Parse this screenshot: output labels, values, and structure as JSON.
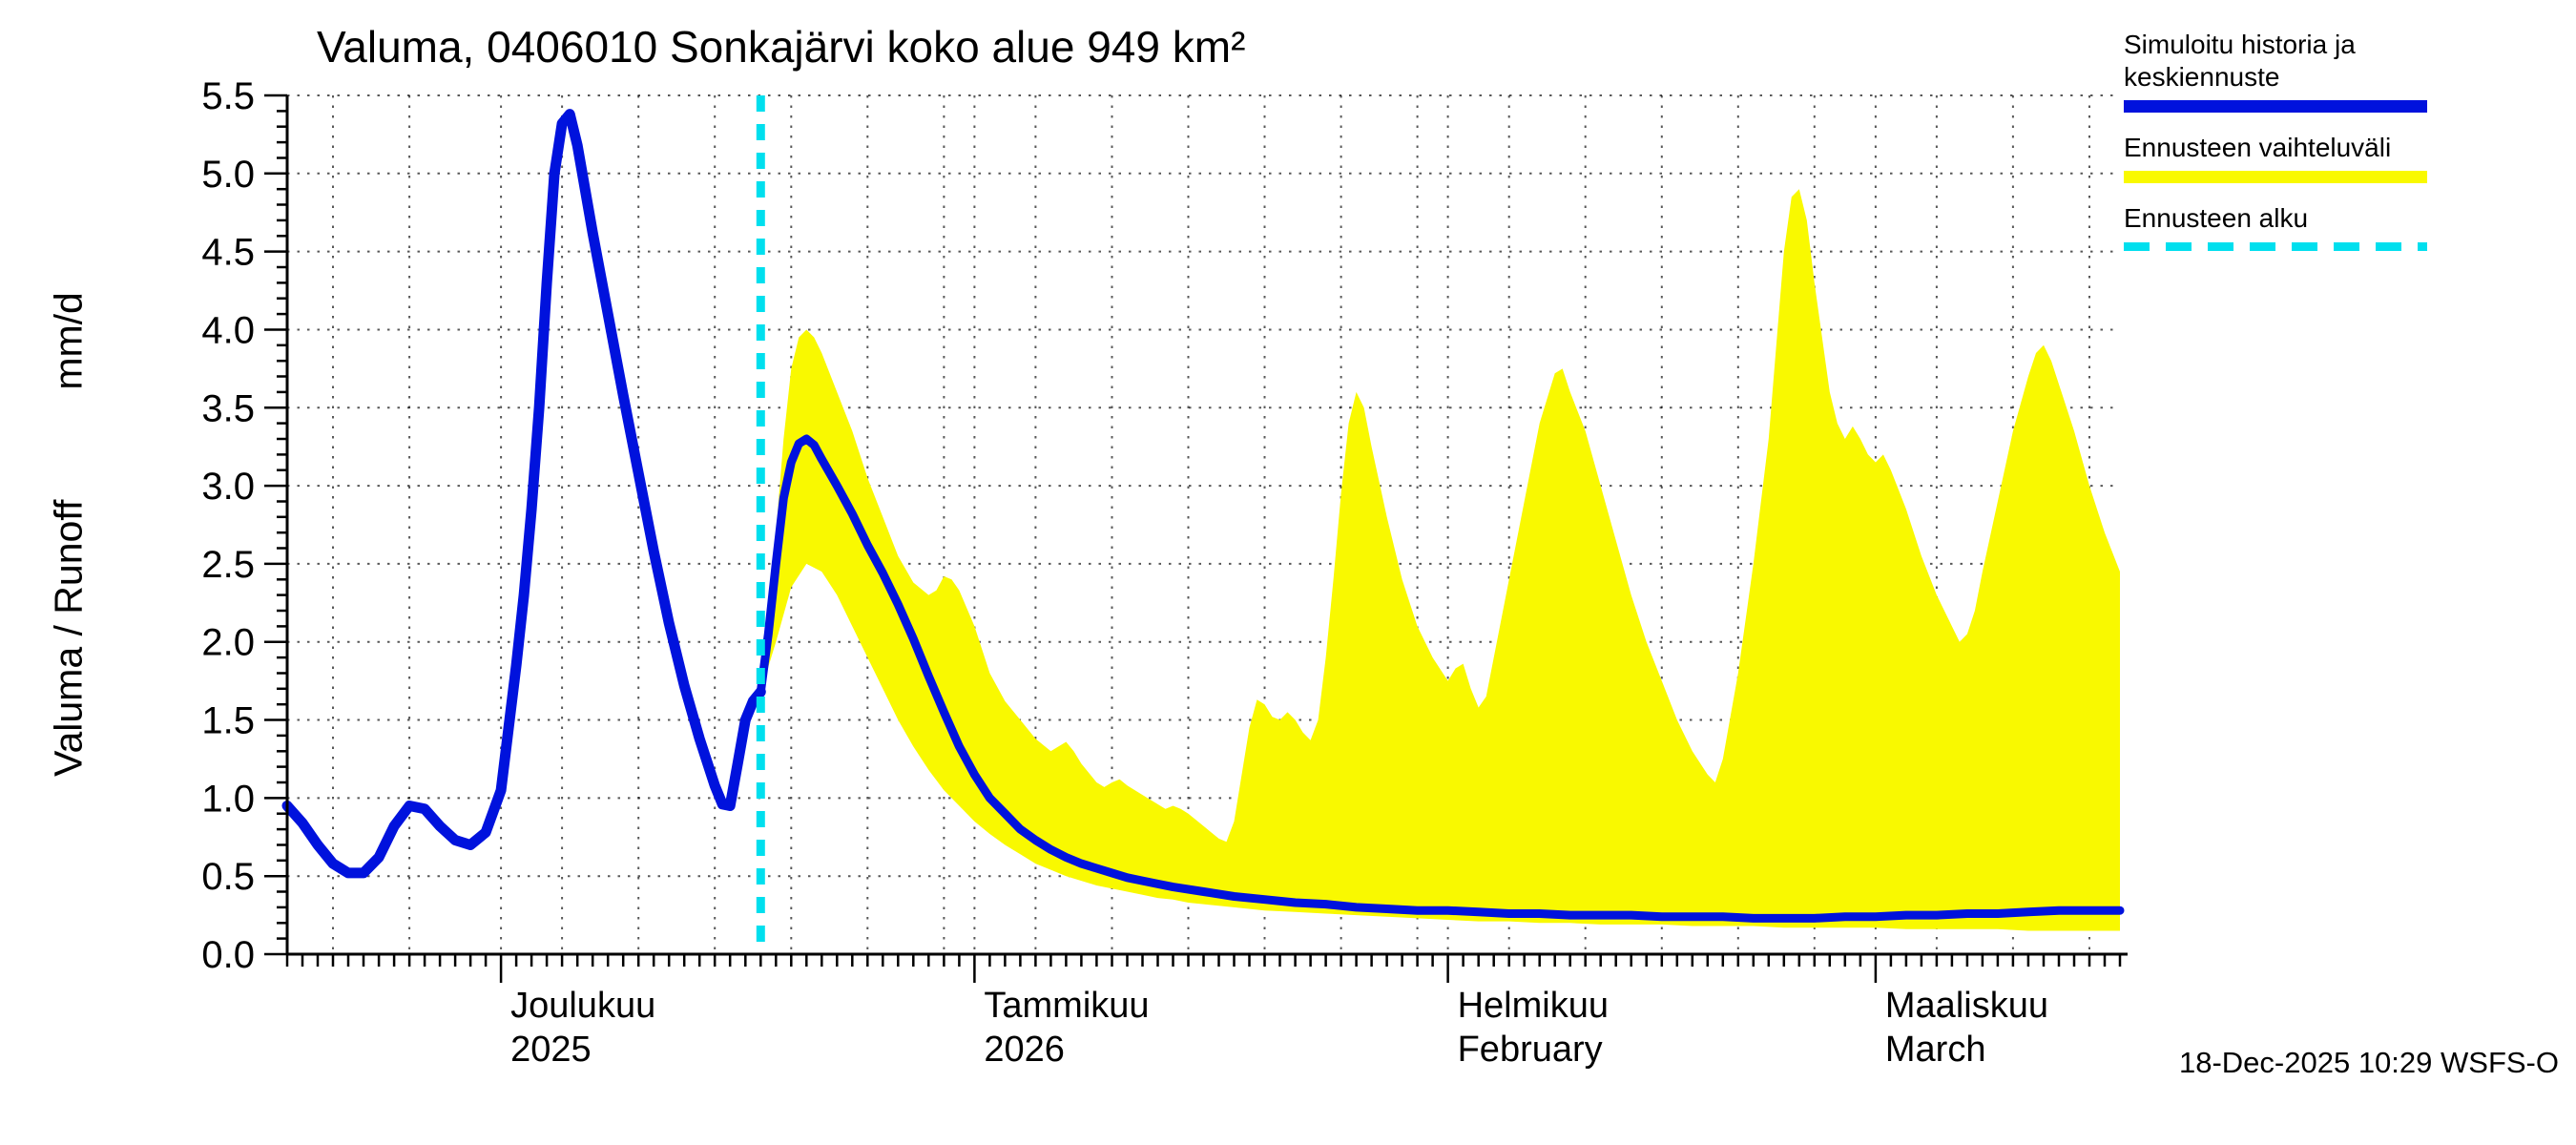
{
  "title": "Valuma, 0406010 Sonkajärvi koko alue 949 km²",
  "timestamp": "18-Dec-2025 10:29 WSFS-O",
  "legend": {
    "items": [
      {
        "label": "Simuloitu historia ja keskiennuste",
        "type": "line",
        "color": "#0012dd"
      },
      {
        "label": "Ennusteen vaihteluväli",
        "type": "band",
        "color": "#f9f900"
      },
      {
        "label": "Ennusteen alku",
        "type": "dashed",
        "color": "#00dfee"
      }
    ]
  },
  "chart_data": {
    "type": "line",
    "title": "Valuma, 0406010 Sonkajärvi koko alue 949 km²",
    "ylabel": "Valuma / Runoff",
    "ylabel_unit": "mm/d",
    "ylim": [
      0,
      5.5
    ],
    "ytick_step": 0.5,
    "x_unit": "days since 17-Nov-2025",
    "xlim": [
      0,
      120
    ],
    "grid": true,
    "legend_position": "top-right",
    "forecast_start_day": 31,
    "forecast_start_date": "18-Dec-2025",
    "forecast_color": "#00dfee",
    "month_ticks": [
      {
        "day": 14,
        "label": "Joulukuu",
        "sub": "2025"
      },
      {
        "day": 45,
        "label": "Tammikuu",
        "sub": "2026"
      },
      {
        "day": 76,
        "label": "Helmikuu",
        "sub": "February"
      },
      {
        "day": 104,
        "label": "Maaliskuu",
        "sub": "March"
      }
    ],
    "grid_days": [
      3,
      8,
      14,
      18,
      23,
      28,
      33,
      38,
      43,
      45,
      49,
      54,
      59,
      64,
      69,
      74,
      76,
      80,
      85,
      90,
      95,
      100,
      104,
      108,
      113,
      118
    ],
    "series": [
      {
        "name": "Simuloitu historia",
        "color": "#0012dd",
        "width": 11,
        "points": [
          [
            0,
            0.95
          ],
          [
            1,
            0.84
          ],
          [
            2,
            0.7
          ],
          [
            3,
            0.58
          ],
          [
            4,
            0.52
          ],
          [
            5,
            0.52
          ],
          [
            6,
            0.62
          ],
          [
            7,
            0.82
          ],
          [
            8,
            0.95
          ],
          [
            9,
            0.93
          ],
          [
            10,
            0.82
          ],
          [
            11,
            0.73
          ],
          [
            12,
            0.7
          ],
          [
            13,
            0.78
          ],
          [
            14,
            1.05
          ],
          [
            14.5,
            1.45
          ],
          [
            15,
            1.85
          ],
          [
            15.5,
            2.3
          ],
          [
            16,
            2.85
          ],
          [
            16.5,
            3.5
          ],
          [
            17,
            4.3
          ],
          [
            17.5,
            5.0
          ],
          [
            18,
            5.32
          ],
          [
            18.5,
            5.38
          ],
          [
            19,
            5.18
          ],
          [
            20,
            4.62
          ],
          [
            21,
            4.1
          ],
          [
            22,
            3.58
          ],
          [
            23,
            3.08
          ],
          [
            24,
            2.58
          ],
          [
            25,
            2.12
          ],
          [
            26,
            1.72
          ],
          [
            27,
            1.38
          ],
          [
            28,
            1.08
          ],
          [
            28.5,
            0.96
          ],
          [
            29,
            0.95
          ],
          [
            29.5,
            1.22
          ],
          [
            30,
            1.5
          ],
          [
            30.5,
            1.62
          ],
          [
            31,
            1.68
          ]
        ]
      },
      {
        "name": "Keskiennuste",
        "color": "#0012dd",
        "width": 9,
        "points": [
          [
            31,
            1.68
          ],
          [
            31.5,
            2.05
          ],
          [
            32,
            2.5
          ],
          [
            32.5,
            2.92
          ],
          [
            33,
            3.15
          ],
          [
            33.5,
            3.27
          ],
          [
            34,
            3.3
          ],
          [
            34.5,
            3.26
          ],
          [
            35,
            3.17
          ],
          [
            36,
            3.0
          ],
          [
            37,
            2.82
          ],
          [
            38,
            2.62
          ],
          [
            39,
            2.44
          ],
          [
            40,
            2.24
          ],
          [
            41,
            2.02
          ],
          [
            42,
            1.78
          ],
          [
            43,
            1.55
          ],
          [
            44,
            1.33
          ],
          [
            45,
            1.15
          ],
          [
            46,
            1.0
          ],
          [
            47,
            0.9
          ],
          [
            48,
            0.8
          ],
          [
            49,
            0.73
          ],
          [
            50,
            0.67
          ],
          [
            51,
            0.62
          ],
          [
            52,
            0.58
          ],
          [
            53,
            0.55
          ],
          [
            54,
            0.52
          ],
          [
            55,
            0.49
          ],
          [
            56,
            0.47
          ],
          [
            57,
            0.45
          ],
          [
            58,
            0.43
          ],
          [
            60,
            0.4
          ],
          [
            62,
            0.37
          ],
          [
            64,
            0.35
          ],
          [
            66,
            0.33
          ],
          [
            68,
            0.32
          ],
          [
            70,
            0.3
          ],
          [
            72,
            0.29
          ],
          [
            74,
            0.28
          ],
          [
            76,
            0.28
          ],
          [
            78,
            0.27
          ],
          [
            80,
            0.26
          ],
          [
            82,
            0.26
          ],
          [
            84,
            0.25
          ],
          [
            86,
            0.25
          ],
          [
            88,
            0.25
          ],
          [
            90,
            0.24
          ],
          [
            92,
            0.24
          ],
          [
            94,
            0.24
          ],
          [
            96,
            0.23
          ],
          [
            98,
            0.23
          ],
          [
            100,
            0.23
          ],
          [
            102,
            0.24
          ],
          [
            104,
            0.24
          ],
          [
            106,
            0.25
          ],
          [
            108,
            0.25
          ],
          [
            110,
            0.26
          ],
          [
            112,
            0.26
          ],
          [
            114,
            0.27
          ],
          [
            116,
            0.28
          ],
          [
            118,
            0.28
          ],
          [
            120,
            0.28
          ]
        ]
      }
    ],
    "band": {
      "name": "Ennusteen vaihteluväli",
      "color": "#f9f900",
      "upper": [
        [
          31,
          1.68
        ],
        [
          31.5,
          2.1
        ],
        [
          32,
          2.7
        ],
        [
          32.5,
          3.3
        ],
        [
          33,
          3.75
        ],
        [
          33.5,
          3.95
        ],
        [
          34,
          4.0
        ],
        [
          34.5,
          3.95
        ],
        [
          35,
          3.85
        ],
        [
          36,
          3.6
        ],
        [
          37,
          3.35
        ],
        [
          38,
          3.05
        ],
        [
          39,
          2.8
        ],
        [
          40,
          2.55
        ],
        [
          41,
          2.38
        ],
        [
          42,
          2.3
        ],
        [
          42.5,
          2.33
        ],
        [
          43,
          2.42
        ],
        [
          43.5,
          2.4
        ],
        [
          44,
          2.33
        ],
        [
          45,
          2.1
        ],
        [
          45.5,
          1.95
        ],
        [
          46,
          1.8
        ],
        [
          47,
          1.62
        ],
        [
          48,
          1.5
        ],
        [
          49,
          1.38
        ],
        [
          50,
          1.3
        ],
        [
          50.5,
          1.33
        ],
        [
          51,
          1.36
        ],
        [
          51.5,
          1.3
        ],
        [
          52,
          1.22
        ],
        [
          53,
          1.1
        ],
        [
          53.5,
          1.07
        ],
        [
          54,
          1.1
        ],
        [
          54.5,
          1.12
        ],
        [
          55,
          1.08
        ],
        [
          56,
          1.02
        ],
        [
          57,
          0.96
        ],
        [
          57.5,
          0.93
        ],
        [
          58,
          0.95
        ],
        [
          58.5,
          0.93
        ],
        [
          59,
          0.9
        ],
        [
          60,
          0.82
        ],
        [
          61,
          0.74
        ],
        [
          61.5,
          0.72
        ],
        [
          62,
          0.85
        ],
        [
          62.5,
          1.15
        ],
        [
          63,
          1.45
        ],
        [
          63.5,
          1.63
        ],
        [
          64,
          1.6
        ],
        [
          64.5,
          1.52
        ],
        [
          65,
          1.5
        ],
        [
          65.5,
          1.55
        ],
        [
          66,
          1.5
        ],
        [
          66.5,
          1.42
        ],
        [
          67,
          1.37
        ],
        [
          67.5,
          1.5
        ],
        [
          68,
          1.9
        ],
        [
          68.5,
          2.4
        ],
        [
          69,
          2.95
        ],
        [
          69.5,
          3.4
        ],
        [
          70,
          3.6
        ],
        [
          70.5,
          3.5
        ],
        [
          71,
          3.25
        ],
        [
          72,
          2.8
        ],
        [
          73,
          2.4
        ],
        [
          74,
          2.1
        ],
        [
          75,
          1.9
        ],
        [
          76,
          1.75
        ],
        [
          76.5,
          1.83
        ],
        [
          77,
          1.86
        ],
        [
          77.5,
          1.7
        ],
        [
          78,
          1.58
        ],
        [
          78.5,
          1.65
        ],
        [
          79,
          1.9
        ],
        [
          80,
          2.4
        ],
        [
          81,
          2.9
        ],
        [
          82,
          3.4
        ],
        [
          83,
          3.72
        ],
        [
          83.5,
          3.75
        ],
        [
          84,
          3.6
        ],
        [
          85,
          3.35
        ],
        [
          86,
          3.0
        ],
        [
          87,
          2.65
        ],
        [
          88,
          2.3
        ],
        [
          89,
          2.0
        ],
        [
          90,
          1.75
        ],
        [
          91,
          1.5
        ],
        [
          92,
          1.3
        ],
        [
          93,
          1.15
        ],
        [
          93.5,
          1.1
        ],
        [
          94,
          1.25
        ],
        [
          95,
          1.8
        ],
        [
          96,
          2.5
        ],
        [
          97,
          3.3
        ],
        [
          97.5,
          3.9
        ],
        [
          98,
          4.5
        ],
        [
          98.5,
          4.85
        ],
        [
          99,
          4.9
        ],
        [
          99.5,
          4.7
        ],
        [
          100,
          4.3
        ],
        [
          100.5,
          3.95
        ],
        [
          101,
          3.6
        ],
        [
          101.5,
          3.4
        ],
        [
          102,
          3.3
        ],
        [
          102.5,
          3.38
        ],
        [
          103,
          3.3
        ],
        [
          103.5,
          3.2
        ],
        [
          104,
          3.15
        ],
        [
          104.5,
          3.2
        ],
        [
          105,
          3.1
        ],
        [
          106,
          2.85
        ],
        [
          107,
          2.55
        ],
        [
          108,
          2.3
        ],
        [
          109,
          2.1
        ],
        [
          109.5,
          2.0
        ],
        [
          110,
          2.05
        ],
        [
          110.5,
          2.2
        ],
        [
          111,
          2.45
        ],
        [
          112,
          2.9
        ],
        [
          113,
          3.35
        ],
        [
          114,
          3.7
        ],
        [
          114.5,
          3.85
        ],
        [
          115,
          3.9
        ],
        [
          115.5,
          3.8
        ],
        [
          116,
          3.65
        ],
        [
          117,
          3.35
        ],
        [
          118,
          3.0
        ],
        [
          119,
          2.7
        ],
        [
          120,
          2.45
        ]
      ],
      "lower": [
        [
          31,
          1.68
        ],
        [
          32,
          2.0
        ],
        [
          33,
          2.35
        ],
        [
          34,
          2.5
        ],
        [
          35,
          2.45
        ],
        [
          36,
          2.3
        ],
        [
          37,
          2.1
        ],
        [
          38,
          1.9
        ],
        [
          39,
          1.7
        ],
        [
          40,
          1.5
        ],
        [
          41,
          1.33
        ],
        [
          42,
          1.18
        ],
        [
          43,
          1.05
        ],
        [
          44,
          0.95
        ],
        [
          45,
          0.85
        ],
        [
          46,
          0.77
        ],
        [
          47,
          0.7
        ],
        [
          48,
          0.64
        ],
        [
          49,
          0.58
        ],
        [
          50,
          0.54
        ],
        [
          51,
          0.5
        ],
        [
          52,
          0.47
        ],
        [
          53,
          0.44
        ],
        [
          54,
          0.42
        ],
        [
          55,
          0.4
        ],
        [
          56,
          0.38
        ],
        [
          57,
          0.36
        ],
        [
          58,
          0.35
        ],
        [
          59,
          0.33
        ],
        [
          60,
          0.32
        ],
        [
          62,
          0.3
        ],
        [
          64,
          0.28
        ],
        [
          66,
          0.27
        ],
        [
          68,
          0.26
        ],
        [
          70,
          0.25
        ],
        [
          72,
          0.24
        ],
        [
          74,
          0.23
        ],
        [
          76,
          0.22
        ],
        [
          78,
          0.21
        ],
        [
          80,
          0.21
        ],
        [
          82,
          0.2
        ],
        [
          84,
          0.2
        ],
        [
          86,
          0.19
        ],
        [
          88,
          0.19
        ],
        [
          90,
          0.19
        ],
        [
          92,
          0.18
        ],
        [
          94,
          0.18
        ],
        [
          96,
          0.18
        ],
        [
          98,
          0.17
        ],
        [
          100,
          0.17
        ],
        [
          102,
          0.17
        ],
        [
          104,
          0.17
        ],
        [
          106,
          0.16
        ],
        [
          108,
          0.16
        ],
        [
          110,
          0.16
        ],
        [
          112,
          0.16
        ],
        [
          114,
          0.15
        ],
        [
          116,
          0.15
        ],
        [
          118,
          0.15
        ],
        [
          120,
          0.15
        ]
      ]
    }
  }
}
